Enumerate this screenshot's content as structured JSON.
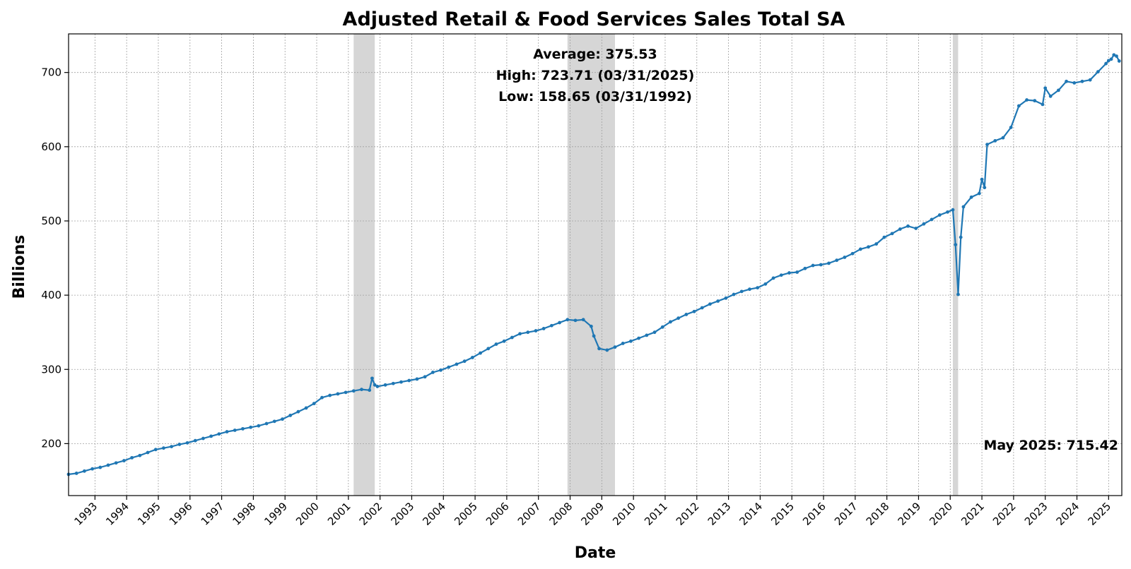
{
  "chart_data": {
    "type": "line",
    "title": "Adjusted Retail & Food Services Sales Total SA",
    "xlabel": "Date",
    "ylabel": "Billions",
    "xlim": [
      "1992-03",
      "2025-06"
    ],
    "ylim": [
      130,
      752
    ],
    "x_ticks": [
      "1993",
      "1994",
      "1995",
      "1996",
      "1997",
      "1998",
      "1999",
      "2000",
      "2001",
      "2002",
      "2003",
      "2004",
      "2005",
      "2006",
      "2007",
      "2008",
      "2009",
      "2010",
      "2011",
      "2012",
      "2013",
      "2014",
      "2015",
      "2016",
      "2017",
      "2018",
      "2019",
      "2020",
      "2021",
      "2022",
      "2023",
      "2024",
      "2025"
    ],
    "y_ticks": [
      200,
      300,
      400,
      500,
      600,
      700
    ],
    "grid": true,
    "stats": {
      "average": "Average: 375.53",
      "high": "High: 723.71 (03/31/2025)",
      "low": "Low: 158.65 (03/31/1992)"
    },
    "last_label": "May 2025: 715.42",
    "recessions": [
      {
        "start": "2001-03",
        "end": "2001-11"
      },
      {
        "start": "2007-12",
        "end": "2009-06"
      },
      {
        "start": "2020-02",
        "end": "2020-04"
      }
    ],
    "series": [
      {
        "color": "#1f77b4",
        "points": [
          [
            "1992-03",
            158.65
          ],
          [
            "1992-06",
            160
          ],
          [
            "1992-09",
            163
          ],
          [
            "1992-12",
            166
          ],
          [
            "1993-03",
            168
          ],
          [
            "1993-06",
            171
          ],
          [
            "1993-09",
            174
          ],
          [
            "1993-12",
            177
          ],
          [
            "1994-03",
            181
          ],
          [
            "1994-06",
            184
          ],
          [
            "1994-09",
            188
          ],
          [
            "1994-12",
            192
          ],
          [
            "1995-03",
            194
          ],
          [
            "1995-06",
            196
          ],
          [
            "1995-09",
            199
          ],
          [
            "1995-12",
            201
          ],
          [
            "1996-03",
            204
          ],
          [
            "1996-06",
            207
          ],
          [
            "1996-09",
            210
          ],
          [
            "1996-12",
            213
          ],
          [
            "1997-03",
            216
          ],
          [
            "1997-06",
            218
          ],
          [
            "1997-09",
            220
          ],
          [
            "1997-12",
            222
          ],
          [
            "1998-03",
            224
          ],
          [
            "1998-06",
            227
          ],
          [
            "1998-09",
            230
          ],
          [
            "1998-12",
            233
          ],
          [
            "1999-03",
            238
          ],
          [
            "1999-06",
            243
          ],
          [
            "1999-09",
            248
          ],
          [
            "1999-12",
            254
          ],
          [
            "2000-03",
            262
          ],
          [
            "2000-06",
            265
          ],
          [
            "2000-09",
            267
          ],
          [
            "2000-12",
            269
          ],
          [
            "2001-03",
            271
          ],
          [
            "2001-06",
            273
          ],
          [
            "2001-09",
            272
          ],
          [
            "2001-10",
            288
          ],
          [
            "2001-11",
            279
          ],
          [
            "2001-12",
            277
          ],
          [
            "2002-03",
            279
          ],
          [
            "2002-06",
            281
          ],
          [
            "2002-09",
            283
          ],
          [
            "2002-12",
            285
          ],
          [
            "2003-03",
            287
          ],
          [
            "2003-06",
            290
          ],
          [
            "2003-09",
            296
          ],
          [
            "2003-12",
            299
          ],
          [
            "2004-03",
            303
          ],
          [
            "2004-06",
            307
          ],
          [
            "2004-09",
            311
          ],
          [
            "2004-12",
            316
          ],
          [
            "2005-03",
            322
          ],
          [
            "2005-06",
            328
          ],
          [
            "2005-09",
            334
          ],
          [
            "2005-12",
            338
          ],
          [
            "2006-03",
            343
          ],
          [
            "2006-06",
            348
          ],
          [
            "2006-09",
            350
          ],
          [
            "2006-12",
            352
          ],
          [
            "2007-03",
            355
          ],
          [
            "2007-06",
            359
          ],
          [
            "2007-09",
            363
          ],
          [
            "2007-12",
            367
          ],
          [
            "2008-03",
            366
          ],
          [
            "2008-06",
            367
          ],
          [
            "2008-09",
            358
          ],
          [
            "2008-10",
            345
          ],
          [
            "2008-12",
            328
          ],
          [
            "2009-03",
            326
          ],
          [
            "2009-06",
            330
          ],
          [
            "2009-09",
            335
          ],
          [
            "2009-12",
            338
          ],
          [
            "2010-03",
            342
          ],
          [
            "2010-06",
            346
          ],
          [
            "2010-09",
            350
          ],
          [
            "2010-12",
            357
          ],
          [
            "2011-03",
            364
          ],
          [
            "2011-06",
            369
          ],
          [
            "2011-09",
            374
          ],
          [
            "2011-12",
            378
          ],
          [
            "2012-03",
            383
          ],
          [
            "2012-06",
            388
          ],
          [
            "2012-09",
            392
          ],
          [
            "2012-12",
            396
          ],
          [
            "2013-03",
            401
          ],
          [
            "2013-06",
            405
          ],
          [
            "2013-09",
            408
          ],
          [
            "2013-12",
            410
          ],
          [
            "2014-03",
            415
          ],
          [
            "2014-06",
            423
          ],
          [
            "2014-09",
            427
          ],
          [
            "2014-12",
            430
          ],
          [
            "2015-03",
            431
          ],
          [
            "2015-06",
            436
          ],
          [
            "2015-09",
            440
          ],
          [
            "2015-12",
            441
          ],
          [
            "2016-03",
            443
          ],
          [
            "2016-06",
            447
          ],
          [
            "2016-09",
            451
          ],
          [
            "2016-12",
            456
          ],
          [
            "2017-03",
            462
          ],
          [
            "2017-06",
            465
          ],
          [
            "2017-09",
            469
          ],
          [
            "2017-12",
            478
          ],
          [
            "2018-03",
            483
          ],
          [
            "2018-06",
            489
          ],
          [
            "2018-09",
            493
          ],
          [
            "2018-12",
            490
          ],
          [
            "2019-03",
            496
          ],
          [
            "2019-06",
            502
          ],
          [
            "2019-09",
            508
          ],
          [
            "2019-12",
            512
          ],
          [
            "2020-02",
            515
          ],
          [
            "2020-03",
            468
          ],
          [
            "2020-04",
            401
          ],
          [
            "2020-05",
            478
          ],
          [
            "2020-06",
            519
          ],
          [
            "2020-09",
            532
          ],
          [
            "2020-12",
            537
          ],
          [
            "2021-01",
            556
          ],
          [
            "2021-02",
            545
          ],
          [
            "2021-03",
            603
          ],
          [
            "2021-06",
            608
          ],
          [
            "2021-09",
            612
          ],
          [
            "2021-12",
            626
          ],
          [
            "2022-03",
            655
          ],
          [
            "2022-06",
            663
          ],
          [
            "2022-09",
            662
          ],
          [
            "2022-12",
            657
          ],
          [
            "2023-01",
            679
          ],
          [
            "2023-03",
            668
          ],
          [
            "2023-06",
            676
          ],
          [
            "2023-09",
            688
          ],
          [
            "2023-12",
            686
          ],
          [
            "2024-03",
            688
          ],
          [
            "2024-06",
            690
          ],
          [
            "2024-09",
            701
          ],
          [
            "2024-12",
            712
          ],
          [
            "2025-01",
            716
          ],
          [
            "2025-02",
            718
          ],
          [
            "2025-03",
            723.71
          ],
          [
            "2025-04",
            722
          ],
          [
            "2025-05",
            715.42
          ]
        ]
      }
    ]
  }
}
